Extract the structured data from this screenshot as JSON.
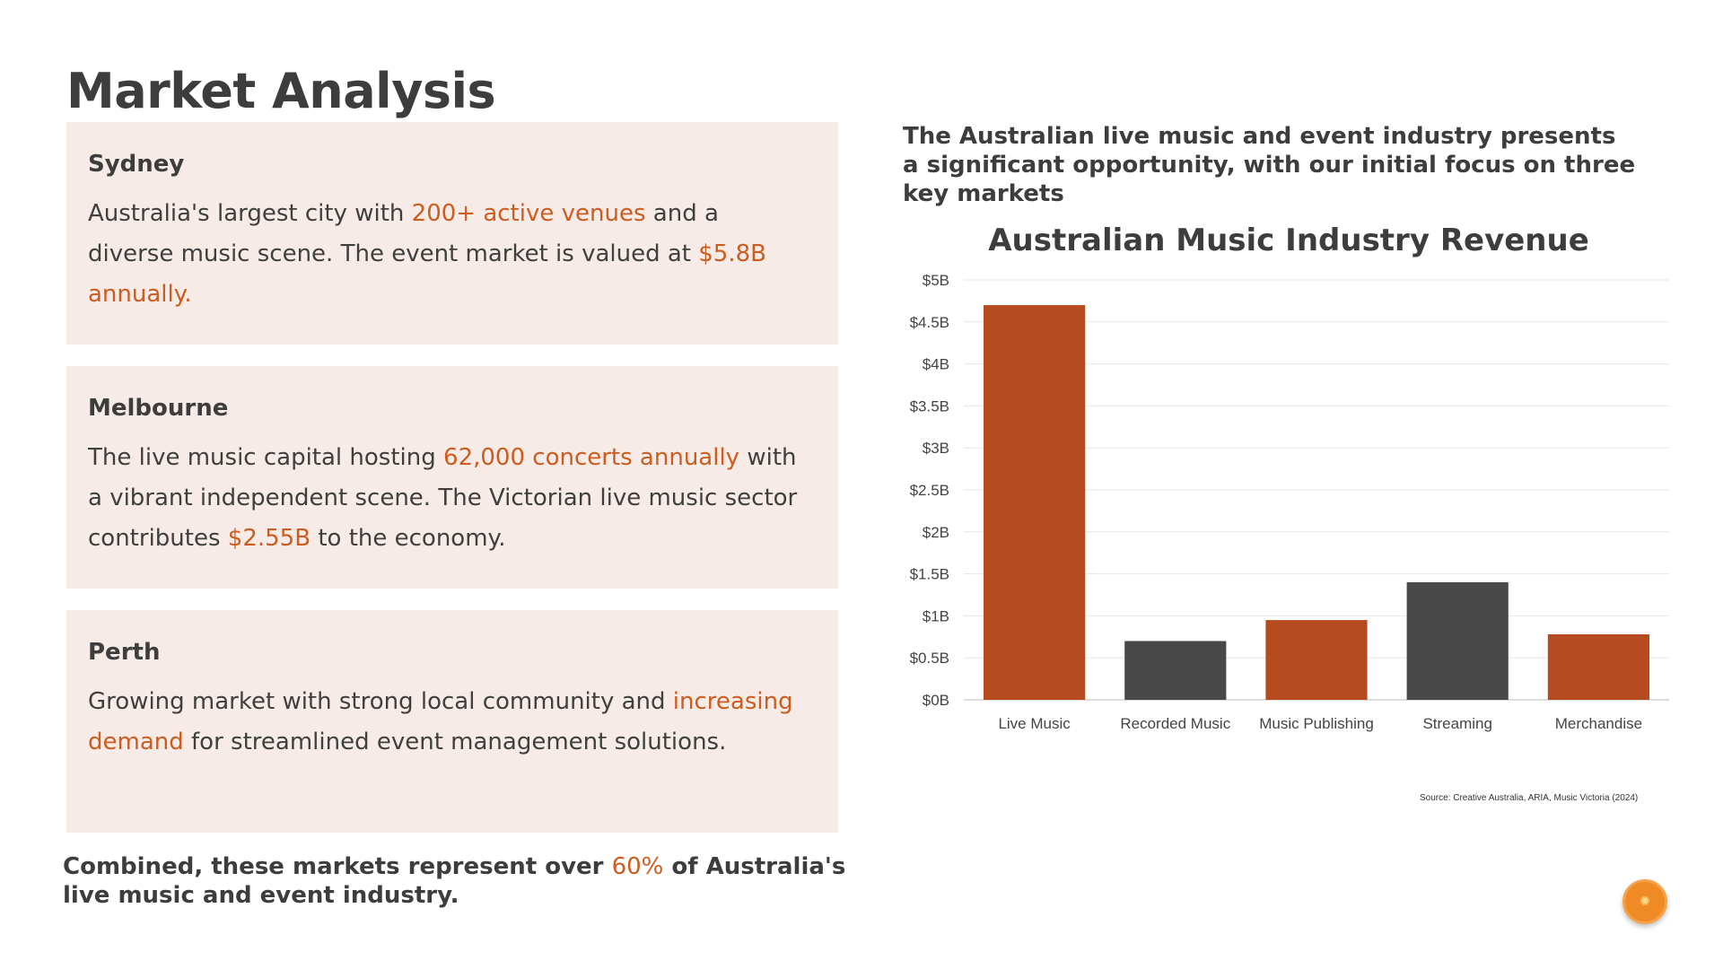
{
  "page": {
    "title": "Market Analysis"
  },
  "cards": [
    {
      "title": "Sydney",
      "parts": [
        "Australia's largest city with ",
        "200+ active venues",
        " and a diverse music scene. The event market is valued at ",
        "$5.8B annually."
      ]
    },
    {
      "title": "Melbourne",
      "parts": [
        "The live music capital hosting ",
        "62,000 concerts annually",
        " with a vibrant independent scene. The Victorian live music sector contributes ",
        "$2.55B",
        " to the economy."
      ]
    },
    {
      "title": "Perth",
      "parts": [
        "Growing market with strong local community and ",
        "increasing demand",
        " for streamlined event management solutions."
      ]
    }
  ],
  "summary": {
    "before": "Combined, these markets represent over ",
    "highlight": "60%",
    "after": " of Australia's live music and event industry."
  },
  "intro": "The Australian live music and event industry presents a significant opportunity, with our initial focus on three key markets",
  "colors": {
    "accent": "#b54b1f",
    "dark": "#484848",
    "highlight": "#cc5c1f",
    "card_bg": "#f6ebe6"
  },
  "chart_data": {
    "type": "bar",
    "title": "Australian Music Industry Revenue",
    "categories": [
      "Live Music",
      "Recorded Music",
      "Music Publishing",
      "Streaming",
      "Merchandise"
    ],
    "values": [
      4.7,
      0.7,
      0.95,
      1.4,
      0.78
    ],
    "bar_colors": [
      "#b54b1f",
      "#484848",
      "#b54b1f",
      "#484848",
      "#b54b1f"
    ],
    "ylim": [
      0,
      5
    ],
    "yticks": [
      "$0B",
      "$0.5B",
      "$1B",
      "$1.5B",
      "$2B",
      "$2.5B",
      "$3B",
      "$3.5B",
      "$4B",
      "$4.5B",
      "$5B"
    ],
    "grid": true,
    "source": "Source: Creative Australia, ARIA, Music Victoria (2024)"
  },
  "logo": {
    "icon": "orange-slice-icon"
  }
}
